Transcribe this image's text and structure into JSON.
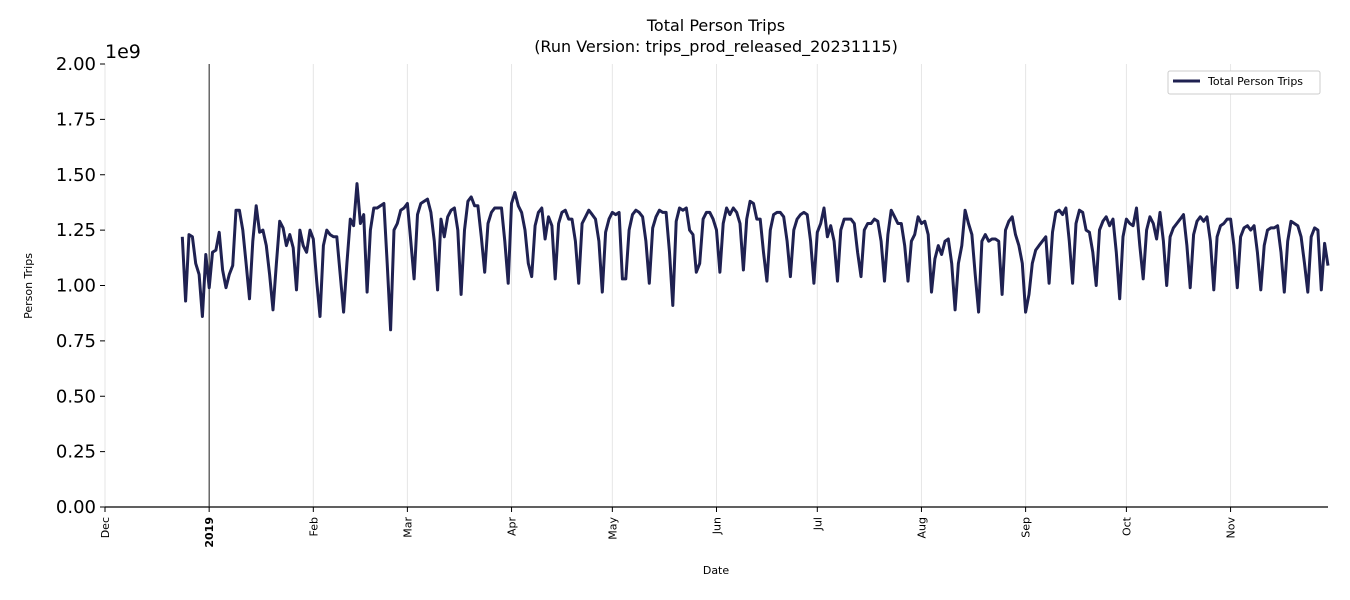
{
  "chart_data": {
    "type": "line",
    "title": "Total Person Trips",
    "subtitle": "(Run Version: trips_prod_released_20231115)",
    "xlabel": "Date",
    "ylabel": "Person Trips",
    "y_offset_label": "1e9",
    "ylim": [
      0,
      2.0
    ],
    "y_ticks": [
      0,
      0.25,
      0.5,
      0.75,
      1.0,
      1.25,
      1.5,
      1.75,
      2.0
    ],
    "y_tick_labels": [
      "0.00",
      "0.25",
      "0.50",
      "0.75",
      "1.00",
      "1.25",
      "1.50",
      "1.75",
      "2.00"
    ],
    "xlim": [
      "2018-12-01",
      "2019-11-30"
    ],
    "x_ticks": [
      {
        "date": "2018-12-01",
        "label": "Dec",
        "bold": false
      },
      {
        "date": "2019-01-01",
        "label": "2019",
        "bold": true
      },
      {
        "date": "2019-02-01",
        "label": "Feb",
        "bold": false
      },
      {
        "date": "2019-03-01",
        "label": "Mar",
        "bold": false
      },
      {
        "date": "2019-04-01",
        "label": "Apr",
        "bold": false
      },
      {
        "date": "2019-05-01",
        "label": "May",
        "bold": false
      },
      {
        "date": "2019-06-01",
        "label": "Jun",
        "bold": false
      },
      {
        "date": "2019-07-01",
        "label": "Jul",
        "bold": false
      },
      {
        "date": "2019-08-01",
        "label": "Aug",
        "bold": false
      },
      {
        "date": "2019-09-01",
        "label": "Sep",
        "bold": false
      },
      {
        "date": "2019-10-01",
        "label": "Oct",
        "bold": false
      },
      {
        "date": "2019-11-01",
        "label": "Nov",
        "bold": false
      }
    ],
    "vertical_marker_date": "2019-01-01",
    "grid": "vertical",
    "legend": {
      "position": "top-right"
    },
    "series": [
      {
        "name": "Total Person Trips",
        "color": "#1f2151",
        "start_date": "2018-12-24",
        "step": "1 day",
        "values": [
          1.22,
          0.93,
          1.23,
          1.22,
          1.1,
          1.05,
          0.86,
          1.14,
          0.99,
          1.15,
          1.16,
          1.24,
          1.07,
          0.99,
          1.05,
          1.09,
          1.34,
          1.34,
          1.25,
          1.1,
          0.94,
          1.2,
          1.36,
          1.24,
          1.25,
          1.18,
          1.05,
          0.89,
          1.1,
          1.29,
          1.26,
          1.18,
          1.23,
          1.17,
          0.98,
          1.25,
          1.18,
          1.15,
          1.25,
          1.21,
          1.02,
          0.86,
          1.18,
          1.25,
          1.23,
          1.22,
          1.22,
          1.05,
          0.88,
          1.1,
          1.3,
          1.27,
          1.46,
          1.28,
          1.32,
          0.97,
          1.25,
          1.35,
          1.35,
          1.36,
          1.37,
          1.1,
          0.8,
          1.25,
          1.28,
          1.34,
          1.35,
          1.37,
          1.2,
          1.03,
          1.32,
          1.37,
          1.38,
          1.39,
          1.33,
          1.2,
          0.98,
          1.3,
          1.22,
          1.31,
          1.34,
          1.35,
          1.25,
          0.96,
          1.25,
          1.38,
          1.4,
          1.36,
          1.36,
          1.22,
          1.06,
          1.28,
          1.33,
          1.35,
          1.35,
          1.35,
          1.2,
          1.01,
          1.37,
          1.42,
          1.36,
          1.33,
          1.25,
          1.1,
          1.04,
          1.27,
          1.33,
          1.35,
          1.21,
          1.31,
          1.27,
          1.03,
          1.28,
          1.33,
          1.34,
          1.3,
          1.3,
          1.2,
          1.01,
          1.28,
          1.31,
          1.34,
          1.32,
          1.3,
          1.2,
          0.97,
          1.24,
          1.3,
          1.33,
          1.32,
          1.33,
          1.03,
          1.03,
          1.25,
          1.32,
          1.34,
          1.33,
          1.31,
          1.2,
          1.01,
          1.26,
          1.31,
          1.34,
          1.33,
          1.33,
          1.15,
          0.91,
          1.29,
          1.35,
          1.34,
          1.35,
          1.25,
          1.23,
          1.06,
          1.1,
          1.3,
          1.33,
          1.33,
          1.3,
          1.25,
          1.06,
          1.28,
          1.35,
          1.32,
          1.35,
          1.33,
          1.28,
          1.07,
          1.3,
          1.38,
          1.37,
          1.3,
          1.3,
          1.15,
          1.02,
          1.25,
          1.32,
          1.33,
          1.33,
          1.31,
          1.2,
          1.04,
          1.25,
          1.3,
          1.32,
          1.33,
          1.32,
          1.2,
          1.01,
          1.24,
          1.28,
          1.35,
          1.22,
          1.27,
          1.2,
          1.02,
          1.25,
          1.3,
          1.3,
          1.3,
          1.28,
          1.15,
          1.04,
          1.25,
          1.28,
          1.28,
          1.3,
          1.29,
          1.2,
          1.02,
          1.23,
          1.34,
          1.31,
          1.28,
          1.28,
          1.18,
          1.02,
          1.2,
          1.23,
          1.31,
          1.28,
          1.29,
          1.23,
          0.97,
          1.12,
          1.18,
          1.14,
          1.2,
          1.21,
          1.1,
          0.89,
          1.1,
          1.18,
          1.34,
          1.28,
          1.23,
          1.05,
          0.88,
          1.2,
          1.23,
          1.2,
          1.21,
          1.21,
          1.2,
          0.96,
          1.25,
          1.29,
          1.31,
          1.23,
          1.18,
          1.1,
          0.88,
          0.96,
          1.1,
          1.16,
          1.18,
          1.2,
          1.22,
          1.01,
          1.24,
          1.33,
          1.34,
          1.32,
          1.35,
          1.2,
          1.01,
          1.28,
          1.34,
          1.33,
          1.25,
          1.24,
          1.15,
          1.0,
          1.25,
          1.29,
          1.31,
          1.27,
          1.3,
          1.15,
          0.94,
          1.22,
          1.3,
          1.28,
          1.27,
          1.35,
          1.18,
          1.03,
          1.25,
          1.31,
          1.28,
          1.21,
          1.33,
          1.2,
          1.0,
          1.22,
          1.26,
          1.28,
          1.3,
          1.32,
          1.18,
          0.99,
          1.23,
          1.29,
          1.31,
          1.29,
          1.31,
          1.2,
          0.98,
          1.22,
          1.27,
          1.28,
          1.3,
          1.3,
          1.18,
          0.99,
          1.22,
          1.26,
          1.27,
          1.25,
          1.27,
          1.15,
          0.98,
          1.18,
          1.25,
          1.26,
          1.26,
          1.27,
          1.15,
          0.97,
          1.2,
          1.29,
          1.28,
          1.27,
          1.22,
          1.1,
          0.97,
          1.22,
          1.26,
          1.25,
          0.98,
          1.19,
          1.09
        ]
      }
    ]
  }
}
